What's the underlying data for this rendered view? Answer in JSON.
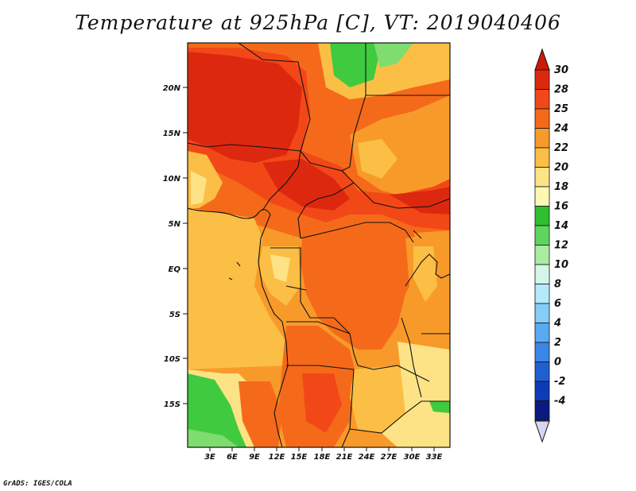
{
  "title": "Temperature at 925hPa [C], VT: 2019040406",
  "credit": "GrADS: IGES/COLA",
  "axes": {
    "lon_labels": [
      "3E",
      "6E",
      "9E",
      "12E",
      "15E",
      "18E",
      "21E",
      "24E",
      "27E",
      "30E",
      "33E"
    ],
    "lat_labels": [
      "20N",
      "15N",
      "10N",
      "5N",
      "EQ",
      "5S",
      "10S",
      "15S"
    ]
  },
  "colorbar": {
    "labels": [
      "30",
      "28",
      "25",
      "24",
      "22",
      "20",
      "18",
      "16",
      "14",
      "12",
      "10",
      "8",
      "6",
      "4",
      "2",
      "0",
      "-2",
      "-4"
    ],
    "colors": [
      "#dd2810",
      "#f24818",
      "#f56a1a",
      "#f89a2a",
      "#fbbf45",
      "#fde385",
      "#fdf7b4",
      "#2fbf2f",
      "#5fd45f",
      "#a8eca0",
      "#d4f7e8",
      "#b4eafb",
      "#86ccf8",
      "#5aaaf2",
      "#3b86e6",
      "#1f5fd2",
      "#0f3ab8",
      "#0a1a80"
    ],
    "top_color": "#cc1a08",
    "bottom_color": "#d6d6f2"
  },
  "colors": {
    "hot": "#dd2810",
    "red_orange": "#f24818",
    "orange": "#f56a1a",
    "light_orange": "#f89a2a",
    "gold": "#fbbf45",
    "pale": "#fde385",
    "green": "#3fca3f",
    "light_green": "#7fdc6f"
  }
}
